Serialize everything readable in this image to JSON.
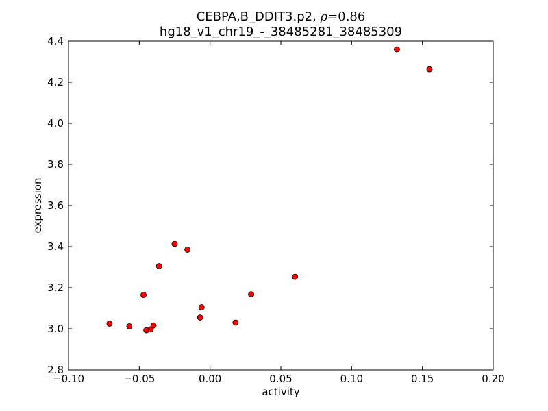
{
  "chart_data": {
    "type": "scatter",
    "title_prefix": "CEBPA,B_DDIT3.p2, ",
    "title_rho_symbol": "ρ",
    "title_rho_value": "=0.86",
    "subtitle": "hg18_v1_chr19_-_38485281_38485309",
    "xlabel": "activity",
    "ylabel": "expression",
    "xlim": [
      -0.1,
      0.2
    ],
    "ylim": [
      2.8,
      4.4
    ],
    "xticks": [
      -0.1,
      -0.05,
      0.0,
      0.05,
      0.1,
      0.15,
      0.2
    ],
    "xtick_labels": [
      "−0.10",
      "−0.05",
      "0.00",
      "0.05",
      "0.10",
      "0.15",
      "0.20"
    ],
    "yticks": [
      2.8,
      3.0,
      3.2,
      3.4,
      3.6,
      3.8,
      4.0,
      4.2,
      4.4
    ],
    "ytick_labels": [
      "2.8",
      "3.0",
      "3.2",
      "3.4",
      "3.6",
      "3.8",
      "4.0",
      "4.2",
      "4.4"
    ],
    "grid": false,
    "marker_color": "#ff0000",
    "points": [
      {
        "x": -0.071,
        "y": 3.025
      },
      {
        "x": -0.057,
        "y": 3.012
      },
      {
        "x": -0.047,
        "y": 3.165
      },
      {
        "x": -0.045,
        "y": 2.993
      },
      {
        "x": -0.042,
        "y": 2.997
      },
      {
        "x": -0.04,
        "y": 3.016
      },
      {
        "x": -0.036,
        "y": 3.305
      },
      {
        "x": -0.025,
        "y": 3.413
      },
      {
        "x": -0.016,
        "y": 3.385
      },
      {
        "x": -0.007,
        "y": 3.055
      },
      {
        "x": -0.006,
        "y": 3.105
      },
      {
        "x": 0.018,
        "y": 3.03
      },
      {
        "x": 0.029,
        "y": 3.168
      },
      {
        "x": 0.06,
        "y": 3.253
      },
      {
        "x": 0.132,
        "y": 4.36
      },
      {
        "x": 0.155,
        "y": 4.263
      }
    ]
  }
}
